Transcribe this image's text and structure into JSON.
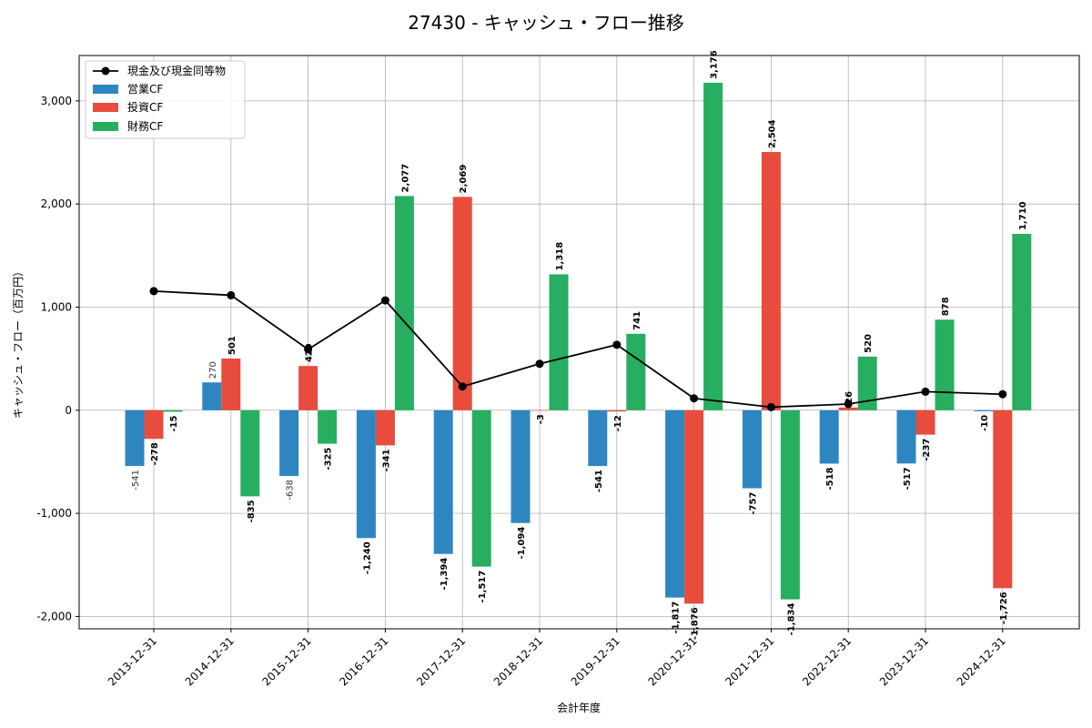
{
  "chart_data": {
    "type": "bar",
    "title": "27430 - キャッシュ・フロー推移",
    "xlabel": "会計年度",
    "ylabel": "キャッシュ・フロー（百万円）",
    "ylim": [
      -2120,
      3440
    ],
    "yticks": [
      -2000,
      -1000,
      0,
      1000,
      2000,
      3000
    ],
    "ytick_labels": [
      "-2,000",
      "-1,000",
      "0",
      "1,000",
      "2,000",
      "3,000"
    ],
    "grid": true,
    "legend_position": "top-left",
    "categories": [
      "2013-12-31",
      "2014-12-31",
      "2015-12-31",
      "2016-12-31",
      "2017-12-31",
      "2018-12-31",
      "2019-12-31",
      "2020-12-31",
      "2021-12-31",
      "2022-12-31",
      "2023-12-31",
      "2024-12-31"
    ],
    "series": [
      {
        "name": "営業CF",
        "color": "#2e86c1",
        "values": [
          -541,
          270,
          -638,
          -1240,
          -1394,
          -1094,
          -541,
          -1817,
          -757,
          -518,
          -517,
          -10
        ],
        "labels": [
          "-541",
          "270",
          "-638",
          "-1,240",
          "-1,394",
          "-1,094",
          "-541",
          "-1,817",
          "-757",
          "-518",
          "-517",
          "-10"
        ],
        "label_style": [
          "light",
          "light",
          "light",
          "bold",
          "bold",
          "bold",
          "bold",
          "bold",
          "bold",
          "bold",
          "bold",
          "bold"
        ]
      },
      {
        "name": "投資CF",
        "color": "#e74c3c",
        "values": [
          -278,
          501,
          429,
          -341,
          2069,
          -3,
          -12,
          -1876,
          2504,
          26,
          -237,
          -1726
        ],
        "labels": [
          "-278",
          "501",
          "429",
          "-341",
          "2,069",
          "-3",
          "-12",
          "-1,876",
          "2,504",
          "26",
          "-237",
          "-1,726"
        ],
        "label_style": [
          "bold",
          "bold",
          "bold",
          "bold",
          "bold",
          "bold",
          "bold",
          "bold",
          "bold",
          "bold",
          "bold",
          "bold"
        ]
      },
      {
        "name": "財務CF",
        "color": "#27ae60",
        "values": [
          -15,
          -835,
          -325,
          2077,
          -1517,
          1318,
          741,
          3176,
          -1834,
          520,
          878,
          1710
        ],
        "labels": [
          "-15",
          "-835",
          "-325",
          "2,077",
          "-1,517",
          "1,318",
          "741",
          "3,176",
          "-1,834",
          "520",
          "878",
          "1,710"
        ],
        "label_style": [
          "bold",
          "bold",
          "bold",
          "bold",
          "bold",
          "bold",
          "bold",
          "bold",
          "bold",
          "bold",
          "bold",
          "bold"
        ]
      }
    ],
    "line": {
      "name": "現金及び現金同等物",
      "color": "#000000",
      "values": [
        1155,
        1115,
        590,
        1065,
        230,
        450,
        635,
        115,
        30,
        60,
        180,
        155
      ]
    }
  }
}
